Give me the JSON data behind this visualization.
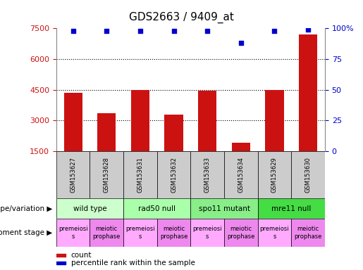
{
  "title": "GDS2663 / 9409_at",
  "samples": [
    "GSM153627",
    "GSM153628",
    "GSM153631",
    "GSM153632",
    "GSM153633",
    "GSM153634",
    "GSM153629",
    "GSM153630"
  ],
  "bar_values": [
    4350,
    3350,
    4480,
    3300,
    4450,
    1900,
    4480,
    7200
  ],
  "percentile_values": [
    98,
    98,
    98,
    98,
    98,
    88,
    98,
    99
  ],
  "bar_color": "#cc1111",
  "dot_color": "#0000cc",
  "ylim_left": [
    1500,
    7500
  ],
  "ylim_right": [
    0,
    100
  ],
  "yticks_left": [
    1500,
    3000,
    4500,
    6000,
    7500
  ],
  "yticks_right": [
    0,
    25,
    50,
    75,
    100
  ],
  "grid_values": [
    3000,
    4500,
    6000
  ],
  "genotype_groups": [
    {
      "label": "wild type",
      "start": 0,
      "end": 2,
      "color": "#ccffcc"
    },
    {
      "label": "rad50 null",
      "start": 2,
      "end": 4,
      "color": "#aaffaa"
    },
    {
      "label": "spo11 mutant",
      "start": 4,
      "end": 6,
      "color": "#88ee88"
    },
    {
      "label": "mre11 null",
      "start": 6,
      "end": 8,
      "color": "#44dd44"
    }
  ],
  "dev_stage_groups": [
    {
      "label": "premeiosi\ns",
      "start": 0,
      "end": 1,
      "color": "#ffaaff"
    },
    {
      "label": "meiotic\nprophase",
      "start": 1,
      "end": 2,
      "color": "#ee88ee"
    },
    {
      "label": "premeiosi\ns",
      "start": 2,
      "end": 3,
      "color": "#ffaaff"
    },
    {
      "label": "meiotic\nprophase",
      "start": 3,
      "end": 4,
      "color": "#ee88ee"
    },
    {
      "label": "premeiosi\ns",
      "start": 4,
      "end": 5,
      "color": "#ffaaff"
    },
    {
      "label": "meiotic\nprophase",
      "start": 5,
      "end": 6,
      "color": "#ee88ee"
    },
    {
      "label": "premeiosi\ns",
      "start": 6,
      "end": 7,
      "color": "#ffaaff"
    },
    {
      "label": "meiotic\nprophase",
      "start": 7,
      "end": 8,
      "color": "#ee88ee"
    }
  ],
  "background_color": "#ffffff",
  "title_fontsize": 11,
  "tick_fontsize": 8,
  "sample_fontsize": 6,
  "label_fontsize": 7.5,
  "geno_fontsize": 7.5,
  "dev_fontsize": 6
}
